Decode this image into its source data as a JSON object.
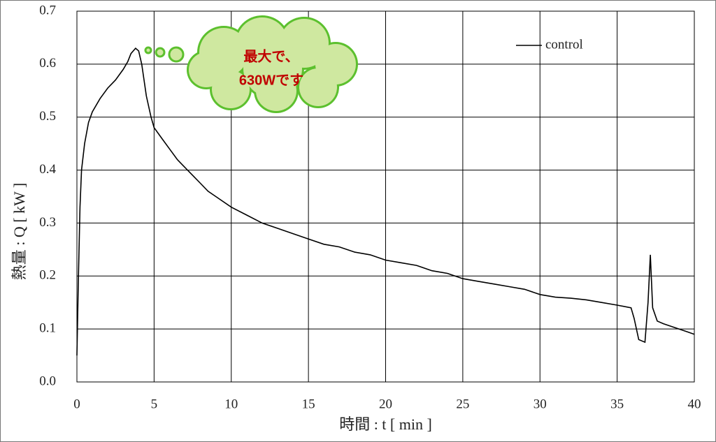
{
  "chart_data": {
    "type": "line",
    "x_label": "時間 : t [ min ]",
    "y_label": "熱量 : Q [ kW ]",
    "annotation": [
      "最大で、",
      "630Wです"
    ],
    "xlim": [
      0,
      40
    ],
    "xticks": [
      0,
      5,
      10,
      15,
      20,
      25,
      30,
      35,
      40
    ],
    "ylim": [
      0,
      0.7
    ],
    "yticks": [
      {
        "value": 0,
        "label": "0.0"
      },
      0.1,
      0.2,
      0.3,
      0.4,
      0.5,
      0.6,
      0.7
    ],
    "grid": true,
    "legend": "upper right",
    "series": [
      {
        "name": "control",
        "color": "#000000",
        "x": [
          0.0,
          0.1,
          0.2,
          0.3,
          0.5,
          0.75,
          1.0,
          1.5,
          2.0,
          2.5,
          3.0,
          3.3,
          3.5,
          3.8,
          4.0,
          4.2,
          4.5,
          4.8,
          5.0,
          5.5,
          6.0,
          6.5,
          7.0,
          7.5,
          8.0,
          8.5,
          9.0,
          10,
          11,
          12,
          13,
          14,
          15,
          16,
          17,
          18,
          19,
          20,
          21,
          22,
          23,
          24,
          25,
          26,
          27,
          28,
          29,
          30,
          31,
          32,
          33,
          34,
          35,
          35.9,
          36.1,
          36.4,
          36.8,
          37.0,
          37.15,
          37.3,
          37.6,
          38,
          39,
          39.5,
          40
        ],
        "values": [
          0.05,
          0.2,
          0.33,
          0.4,
          0.45,
          0.49,
          0.51,
          0.535,
          0.555,
          0.57,
          0.59,
          0.605,
          0.62,
          0.63,
          0.625,
          0.6,
          0.54,
          0.5,
          0.48,
          0.46,
          0.44,
          0.42,
          0.405,
          0.39,
          0.375,
          0.36,
          0.35,
          0.33,
          0.315,
          0.3,
          0.29,
          0.28,
          0.27,
          0.26,
          0.255,
          0.245,
          0.24,
          0.23,
          0.225,
          0.22,
          0.21,
          0.205,
          0.195,
          0.19,
          0.185,
          0.18,
          0.175,
          0.165,
          0.16,
          0.158,
          0.155,
          0.15,
          0.145,
          0.14,
          0.12,
          0.08,
          0.075,
          0.15,
          0.24,
          0.14,
          0.115,
          0.11,
          0.1,
          0.095,
          0.09
        ]
      }
    ]
  }
}
